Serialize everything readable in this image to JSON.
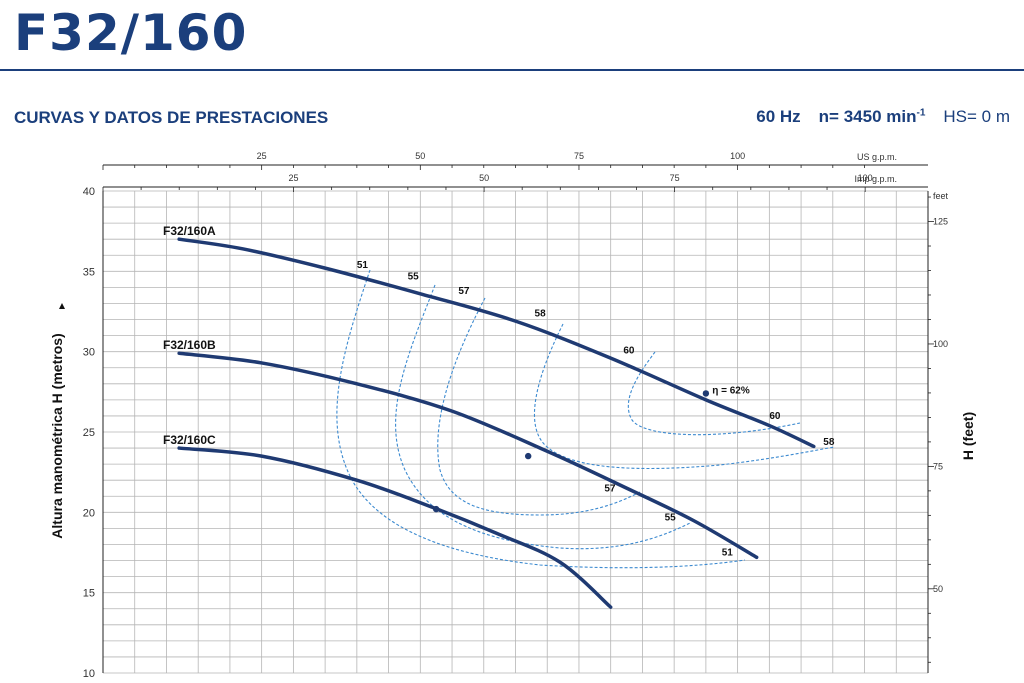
{
  "header": {
    "model": "F32/160",
    "section_title": "CURVAS Y DATOS DE PRESTACIONES",
    "frequency": "60 Hz",
    "speed_prefix": "n= 3450 min",
    "speed_exp": "-1",
    "hs": "HS= 0 m"
  },
  "colors": {
    "accent": "#1b3f7c",
    "curve": "#1f3a72",
    "iso_efficiency": "#3c8ad0",
    "grid": "#b5b5b5"
  },
  "chart_data": {
    "type": "line",
    "ylabel": "Altura manométrica H  (metros)",
    "ylabel_right": "H (feet)",
    "ylim": [
      10,
      40
    ],
    "y_ticks": [
      10,
      15,
      20,
      25,
      30,
      35,
      40
    ],
    "xlim_us_gpm": [
      0,
      130
    ],
    "grid": true,
    "top_axes": [
      {
        "unit": "US g.p.m.",
        "ticks": [
          25,
          50,
          75,
          100
        ],
        "minor_step": 5,
        "max": 120
      },
      {
        "unit": "Imp g.p.m.",
        "ticks": [
          25,
          50,
          75,
          100
        ],
        "minor_step": 5,
        "max": 100
      }
    ],
    "right_axis": {
      "unit": "feet",
      "ticks": [
        50,
        75,
        100,
        125
      ],
      "minor_step": 5
    },
    "series": [
      {
        "name": "F32/160A",
        "x": [
          12,
          22,
          35,
          50,
          65,
          80,
          95,
          105,
          112
        ],
        "y": [
          37,
          36.4,
          35.2,
          33.6,
          31.9,
          29.6,
          27,
          25.4,
          24.1
        ]
      },
      {
        "name": "F32/160B",
        "x": [
          12,
          25,
          40,
          55,
          70,
          82,
          93,
          103
        ],
        "y": [
          29.9,
          29.3,
          28,
          26.3,
          23.8,
          21.6,
          19.5,
          17.2
        ]
      },
      {
        "name": "F32/160C",
        "x": [
          12,
          25,
          40,
          52,
          62,
          72,
          80
        ],
        "y": [
          24,
          23.5,
          22,
          20.3,
          18.7,
          16.9,
          14.1
        ]
      }
    ],
    "efficiency_labels": [
      {
        "text": "51",
        "x": 40,
        "y": 35.2
      },
      {
        "text": "55",
        "x": 48,
        "y": 34.5
      },
      {
        "text": "57",
        "x": 56,
        "y": 33.6
      },
      {
        "text": "58",
        "x": 68,
        "y": 32.2
      },
      {
        "text": "60",
        "x": 82,
        "y": 29.9
      },
      {
        "text": "η = 62%",
        "x": 96,
        "y": 27.4
      },
      {
        "text": "60",
        "x": 105,
        "y": 25.8
      },
      {
        "text": "58",
        "x": 113.5,
        "y": 24.2
      },
      {
        "text": "57",
        "x": 79,
        "y": 21.3
      },
      {
        "text": "55",
        "x": 88.5,
        "y": 19.5
      },
      {
        "text": "51",
        "x": 97.5,
        "y": 17.3
      }
    ],
    "efficiency_points": [
      {
        "x": 95,
        "y": 27.4
      },
      {
        "x": 67,
        "y": 23.5
      },
      {
        "x": 52.5,
        "y": 20.2
      }
    ]
  }
}
